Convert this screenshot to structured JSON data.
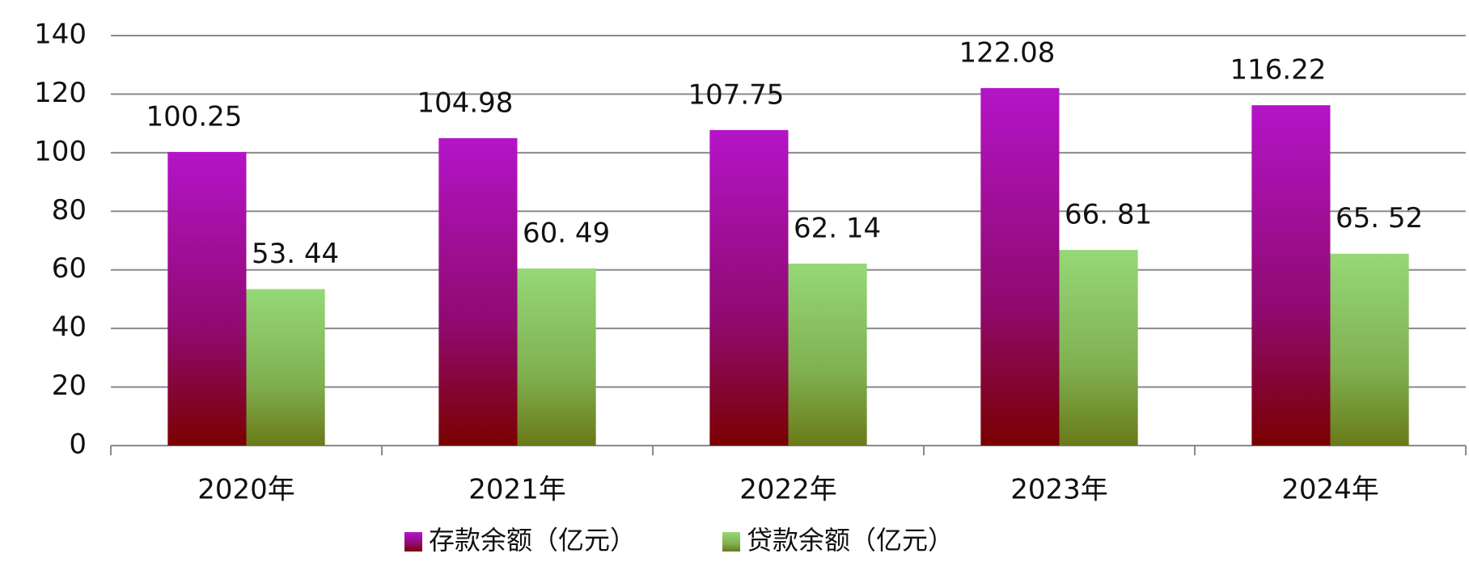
{
  "chart_data": {
    "type": "bar",
    "categories": [
      "2020年",
      "2021年",
      "2022年",
      "2023年",
      "2024年"
    ],
    "series": [
      {
        "name": "存款余额（亿元）",
        "color": "#a010b0",
        "values": [
          100.25,
          104.98,
          107.75,
          122.08,
          116.22
        ]
      },
      {
        "name": "贷款余额（亿元）",
        "color": "#8cc860",
        "values": [
          53.44,
          60.49,
          62.14,
          66.81,
          65.52
        ],
        "value_labels": [
          "53. 44",
          "60. 49",
          "62. 14",
          "66. 81",
          "65. 52"
        ]
      }
    ],
    "ylim": [
      0,
      140
    ],
    "yticks": [
      0,
      20,
      40,
      60,
      80,
      100,
      120,
      140
    ],
    "grid": true,
    "legend": "bottom"
  }
}
